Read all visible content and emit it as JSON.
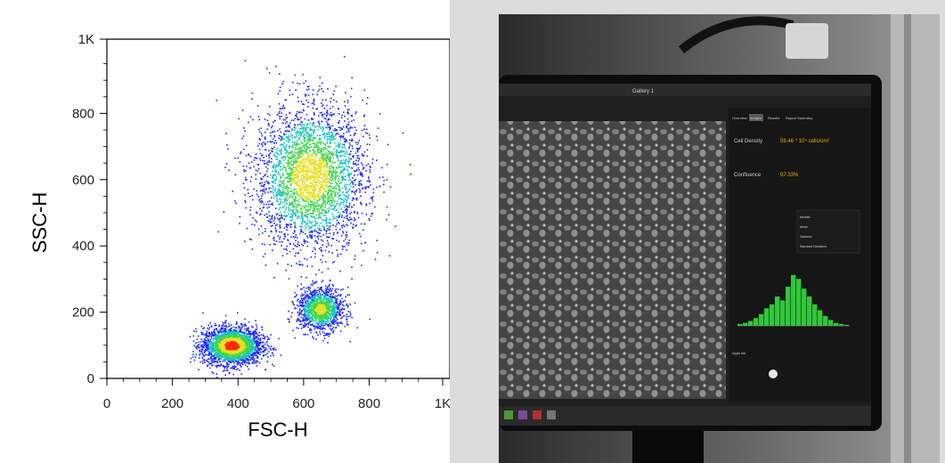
{
  "chart_data": {
    "type": "scatter",
    "title": "",
    "xlabel": "FSC-H",
    "ylabel": "SSC-H",
    "xlim": [
      0,
      1024
    ],
    "ylim": [
      0,
      1024
    ],
    "x_ticks": [
      "0",
      "200",
      "400",
      "600",
      "800",
      "1K"
    ],
    "y_ticks": [
      "0",
      "200",
      "400",
      "600",
      "800",
      "1K"
    ],
    "x_tick_values": [
      0,
      200,
      400,
      600,
      800,
      1024
    ],
    "y_tick_values": [
      0,
      200,
      400,
      600,
      800,
      1024
    ],
    "grid": false,
    "coloring": "density (blue low, green, yellow, red high)",
    "populations": [
      {
        "center_x": 380,
        "center_y": 100,
        "spread_x": 45,
        "spread_y": 28,
        "peak": "red"
      },
      {
        "center_x": 650,
        "center_y": 210,
        "spread_x": 35,
        "spread_y": 32,
        "peak": "green"
      },
      {
        "center_x": 620,
        "center_y": 610,
        "spread_x": 85,
        "spread_y": 110,
        "peak": "yellow"
      }
    ]
  },
  "photo": {
    "window_title": "Gallery 1",
    "tabs": [
      "Overview",
      "Images",
      "Results",
      "Report Summary"
    ],
    "cell_density_label": "Cell Density",
    "cell_density_value": "58.46 * 10⁴ cells/cm²",
    "confluence_label": "Confluence",
    "confluence_value": "97.33%",
    "stats_labels": [
      "Median",
      "Mean",
      "Variance",
      "Standard Deviation"
    ],
    "footer_label": "Apps list"
  },
  "colors": {
    "density_low": "#1f2bff",
    "density_mid": "#18c4c0",
    "density_high_green": "#3fd84a",
    "density_high_yellow": "#e8e020",
    "density_peak": "#ff2a00",
    "ui_accent": "#e8b000",
    "histogram_green": "#2fc83a"
  }
}
